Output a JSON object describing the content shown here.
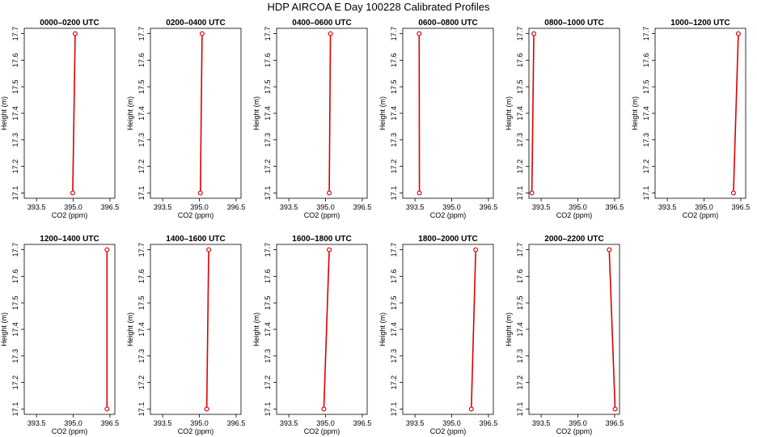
{
  "figure": {
    "title": "HDP AIRCOA E  Day 100228  Calibrated Profiles"
  },
  "chart_data": [
    {
      "type": "line",
      "title": "0000–0200 UTC",
      "xlabel": "CO2 (ppm)",
      "ylabel": "Height (m)",
      "xlim": [
        393.0,
        396.7
      ],
      "ylim": [
        17.08,
        17.72
      ],
      "xticks": [
        "393.5",
        "395.0",
        "396.5"
      ],
      "yticks": [
        "17.1",
        "17.2",
        "17.3",
        "17.4",
        "17.5",
        "17.6",
        "17.7"
      ],
      "series": [
        {
          "x": [
            394.98,
            395.08
          ],
          "y": [
            17.1,
            17.7
          ],
          "color": "#dd0000"
        }
      ]
    },
    {
      "type": "line",
      "title": "0200–0400 UTC",
      "xlabel": "CO2 (ppm)",
      "ylabel": "Height (m)",
      "xlim": [
        393.0,
        396.7
      ],
      "ylim": [
        17.08,
        17.72
      ],
      "xticks": [
        "393.5",
        "395.0",
        "396.5"
      ],
      "yticks": [
        "17.1",
        "17.2",
        "17.3",
        "17.4",
        "17.5",
        "17.6",
        "17.7"
      ],
      "series": [
        {
          "x": [
            395.04,
            395.11
          ],
          "y": [
            17.1,
            17.7
          ],
          "color": "#dd0000"
        }
      ]
    },
    {
      "type": "line",
      "title": "0400–0600 UTC",
      "xlabel": "CO2 (ppm)",
      "ylabel": "Height (m)",
      "xlim": [
        393.0,
        396.7
      ],
      "ylim": [
        17.08,
        17.72
      ],
      "xticks": [
        "393.5",
        "395.0",
        "396.5"
      ],
      "yticks": [
        "17.1",
        "17.2",
        "17.3",
        "17.4",
        "17.5",
        "17.6",
        "17.7"
      ],
      "series": [
        {
          "x": [
            395.15,
            395.2
          ],
          "y": [
            17.1,
            17.7
          ],
          "color": "#dd0000"
        }
      ]
    },
    {
      "type": "line",
      "title": "0600–0800 UTC",
      "xlabel": "CO2 (ppm)",
      "ylabel": "Height (m)",
      "xlim": [
        393.0,
        396.7
      ],
      "ylim": [
        17.08,
        17.72
      ],
      "xticks": [
        "393.5",
        "395.0",
        "396.5"
      ],
      "yticks": [
        "17.1",
        "17.2",
        "17.3",
        "17.4",
        "17.5",
        "17.6",
        "17.7"
      ],
      "series": [
        {
          "x": [
            393.68,
            393.67
          ],
          "y": [
            17.1,
            17.7
          ],
          "color": "#dd0000"
        }
      ]
    },
    {
      "type": "line",
      "title": "0800–1000 UTC",
      "xlabel": "CO2 (ppm)",
      "ylabel": "Height (m)",
      "xlim": [
        393.0,
        396.7
      ],
      "ylim": [
        17.08,
        17.72
      ],
      "xticks": [
        "393.5",
        "395.0",
        "396.5"
      ],
      "yticks": [
        "17.1",
        "17.2",
        "17.3",
        "17.4",
        "17.5",
        "17.6",
        "17.7"
      ],
      "series": [
        {
          "x": [
            393.12,
            393.2
          ],
          "y": [
            17.1,
            17.7
          ],
          "color": "#dd0000"
        }
      ]
    },
    {
      "type": "line",
      "title": "1000–1200 UTC",
      "xlabel": "CO2 (ppm)",
      "ylabel": "Height (m)",
      "xlim": [
        393.0,
        396.7
      ],
      "ylim": [
        17.08,
        17.72
      ],
      "xticks": [
        "393.5",
        "395.0",
        "396.5"
      ],
      "yticks": [
        "17.1",
        "17.2",
        "17.3",
        "17.4",
        "17.5",
        "17.6",
        "17.7"
      ],
      "series": [
        {
          "x": [
            396.2,
            396.4
          ],
          "y": [
            17.1,
            17.7
          ],
          "color": "#dd0000"
        }
      ]
    },
    {
      "type": "line",
      "title": "1200–1400 UTC",
      "xlabel": "CO2 (ppm)",
      "ylabel": "Height (m)",
      "xlim": [
        393.0,
        396.7
      ],
      "ylim": [
        17.08,
        17.72
      ],
      "xticks": [
        "393.5",
        "395.0",
        "396.5"
      ],
      "yticks": [
        "17.1",
        "17.2",
        "17.3",
        "17.4",
        "17.5",
        "17.6",
        "17.7"
      ],
      "series": [
        {
          "x": [
            396.38,
            396.38
          ],
          "y": [
            17.1,
            17.7
          ],
          "color": "#dd0000"
        }
      ]
    },
    {
      "type": "line",
      "title": "1400–1600 UTC",
      "xlabel": "CO2 (ppm)",
      "ylabel": "Height (m)",
      "xlim": [
        393.0,
        396.7
      ],
      "ylim": [
        17.08,
        17.72
      ],
      "xticks": [
        "393.5",
        "395.0",
        "396.5"
      ],
      "yticks": [
        "17.1",
        "17.2",
        "17.3",
        "17.4",
        "17.5",
        "17.6",
        "17.7"
      ],
      "series": [
        {
          "x": [
            395.3,
            395.38
          ],
          "y": [
            17.1,
            17.7
          ],
          "color": "#dd0000"
        }
      ]
    },
    {
      "type": "line",
      "title": "1600–1800 UTC",
      "xlabel": "CO2 (ppm)",
      "ylabel": "Height (m)",
      "xlim": [
        393.0,
        396.7
      ],
      "ylim": [
        17.08,
        17.72
      ],
      "xticks": [
        "393.5",
        "395.0",
        "396.5"
      ],
      "yticks": [
        "17.1",
        "17.2",
        "17.3",
        "17.4",
        "17.5",
        "17.6",
        "17.7"
      ],
      "series": [
        {
          "x": [
            394.93,
            395.15
          ],
          "y": [
            17.1,
            17.7
          ],
          "color": "#dd0000"
        }
      ]
    },
    {
      "type": "line",
      "title": "1800–2000 UTC",
      "xlabel": "CO2 (ppm)",
      "ylabel": "Height (m)",
      "xlim": [
        393.0,
        396.7
      ],
      "ylim": [
        17.08,
        17.72
      ],
      "xticks": [
        "393.5",
        "395.0",
        "396.5"
      ],
      "yticks": [
        "17.1",
        "17.2",
        "17.3",
        "17.4",
        "17.5",
        "17.6",
        "17.7"
      ],
      "series": [
        {
          "x": [
            395.8,
            395.98
          ],
          "y": [
            17.1,
            17.7
          ],
          "color": "#dd0000"
        }
      ]
    },
    {
      "type": "line",
      "title": "2000–2200 UTC",
      "xlabel": "CO2 (ppm)",
      "ylabel": "Height (m)",
      "xlim": [
        393.0,
        396.7
      ],
      "ylim": [
        17.08,
        17.72
      ],
      "xticks": [
        "393.5",
        "395.0",
        "396.5"
      ],
      "yticks": [
        "17.1",
        "17.2",
        "17.3",
        "17.4",
        "17.5",
        "17.6",
        "17.7"
      ],
      "series": [
        {
          "x": [
            396.52,
            396.28
          ],
          "y": [
            17.1,
            17.7
          ],
          "color": "#dd0000"
        }
      ]
    }
  ]
}
